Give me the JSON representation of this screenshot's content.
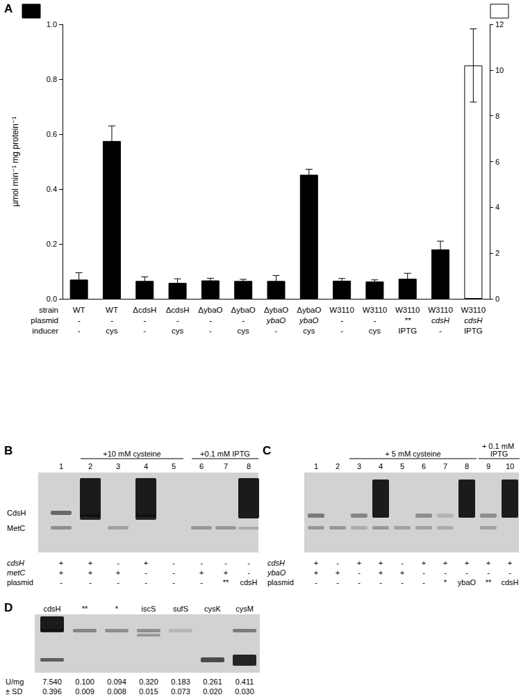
{
  "chart_data": {
    "type": "bar",
    "panel": "A",
    "y_label": "µmol min⁻¹ mg protein⁻¹",
    "categories": [
      "WT",
      "WT",
      "ΔcdsH",
      "ΔcdsH",
      "ΔybaO",
      "ΔybaO",
      "ΔybaO",
      "ΔybaO",
      "W3110",
      "W3110",
      "W3110",
      "W3110",
      "W3110"
    ],
    "row_labels": [
      "strain",
      "plasmid",
      "inducer"
    ],
    "plasmid": [
      "-",
      "-",
      "-",
      "-",
      "-",
      "-",
      "ybaO",
      "ybaO",
      "-",
      "-",
      "**",
      "cdsH",
      "cdsH"
    ],
    "inducer": [
      "-",
      "cys",
      "-",
      "cys",
      "-",
      "cys",
      "-",
      "cys",
      "-",
      "cys",
      "IPTG",
      "-",
      "IPTG"
    ],
    "ylim": [
      0,
      1
    ],
    "yticks": [
      {
        "value": 0,
        "label": "0.0"
      },
      0.2,
      0.4,
      0.6,
      0.8,
      {
        "value": 1,
        "label": "1.0"
      }
    ],
    "y2lim": [
      0,
      12
    ],
    "y2ticks": [
      0,
      2,
      4,
      6,
      8,
      10,
      12
    ],
    "grid": false,
    "series": [
      {
        "color": "#000000",
        "values": [
          0.07,
          0.575,
          0.065,
          0.058,
          0.067,
          0.065,
          0.065,
          0.452,
          0.066,
          0.063,
          0.073,
          0.18,
          null
        ],
        "errors": [
          0.025,
          0.055,
          0.015,
          0.015,
          0.008,
          0.006,
          0.02,
          0.02,
          0.008,
          0.006,
          0.02,
          0.03,
          null
        ]
      },
      {
        "color": "#ffffff",
        "axis": "y2",
        "values": [
          null,
          null,
          null,
          null,
          null,
          null,
          null,
          null,
          null,
          null,
          null,
          null,
          10.2
        ],
        "errors": [
          null,
          null,
          null,
          null,
          null,
          null,
          null,
          null,
          null,
          null,
          null,
          null,
          1.6
        ]
      }
    ]
  },
  "gels": [
    {
      "panel": "B",
      "lanes": [
        "1",
        "2",
        "3",
        "4",
        "5",
        "6",
        "7",
        "8"
      ],
      "headers": [
        {
          "text": "+10 mM cysteine",
          "lanes": [
            2,
            5
          ]
        },
        {
          "text": "+0.1 mM IPTG",
          "lanes": [
            6,
            8
          ]
        }
      ],
      "band_labels": [
        "CdsH",
        "MetC"
      ],
      "rows": [
        {
          "label": "cdsH",
          "values": [
            "+",
            "+",
            "-",
            "+",
            "-",
            "-",
            "-",
            "-"
          ]
        },
        {
          "label": "metC",
          "values": [
            "+",
            "+",
            "+",
            "-",
            "-",
            "+",
            "+",
            "-"
          ]
        },
        {
          "label": "plasmid",
          "values": [
            "-",
            "-",
            "-",
            "-",
            "-",
            "-",
            "**",
            "cdsH"
          ]
        }
      ]
    },
    {
      "panel": "C",
      "lanes": [
        "1",
        "2",
        "3",
        "4",
        "5",
        "6",
        "7",
        "8",
        "9",
        "10"
      ],
      "headers": [
        {
          "text": "+ 5 mM cysteine",
          "lanes": [
            3,
            8
          ]
        },
        {
          "text": "+ 0.1 mM IPTG",
          "lanes": [
            9,
            10
          ]
        }
      ],
      "band_labels": [],
      "rows": [
        {
          "label": "cdsH",
          "values": [
            "+",
            "-",
            "+",
            "+",
            "-",
            "+",
            "+",
            "+",
            "+",
            "+"
          ]
        },
        {
          "label": "ybaO",
          "values": [
            "+",
            "+",
            "-",
            "+",
            "+",
            "-",
            "-",
            "-",
            "-",
            "-"
          ]
        },
        {
          "label": "plasmid",
          "values": [
            "-",
            "-",
            "-",
            "-",
            "-",
            "-",
            "*",
            "ybaO",
            "**",
            "cdsH"
          ]
        }
      ]
    },
    {
      "panel": "D",
      "lanes": [
        "cdsH",
        "**",
        "*",
        "iscS",
        "sufS",
        "cysK",
        "cysM"
      ],
      "headers": [],
      "band_labels": [],
      "rows": [
        {
          "label": "U/mg",
          "values": [
            "7.540",
            "0.100",
            "0.094",
            "0.320",
            "0.183",
            "0.261",
            "0.411"
          ]
        },
        {
          "label": "± SD",
          "values": [
            "0.396",
            "0.009",
            "0.008",
            "0.015",
            "0.073",
            "0.020",
            "0.030"
          ]
        }
      ]
    }
  ]
}
